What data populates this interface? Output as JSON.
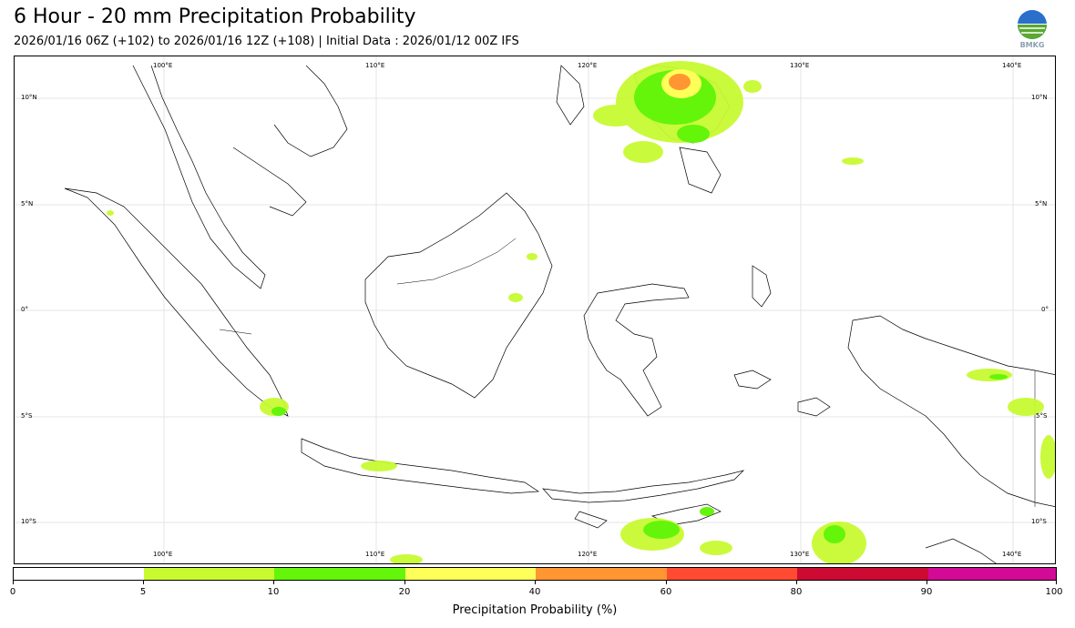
{
  "header": {
    "title": "6 Hour - 20 mm Precipitation Probability",
    "subtitle": "2026/01/16 06Z (+102) to 2026/01/16 12Z (+108) | Initial Data : 2026/01/12 00Z IFS"
  },
  "logo": {
    "text": "BMKG",
    "icon": "bmkg-logo"
  },
  "map": {
    "lon_labels_top": [
      "100°E",
      "110°E",
      "120°E",
      "130°E",
      "140°E"
    ],
    "lon_labels_bottom": [
      "100°E",
      "110°E",
      "120°E",
      "130°E",
      "140°E"
    ],
    "lat_labels_left": [
      "10°N",
      "5°N",
      "0°",
      "5°S",
      "10°S"
    ],
    "lat_labels_right": [
      "10°N",
      "5°N",
      "0°",
      "5°S",
      "10°S"
    ]
  },
  "colorbar": {
    "label": "Precipitation Probability (%)",
    "ticks": [
      "0",
      "5",
      "10",
      "20",
      "40",
      "60",
      "80",
      "90",
      "100"
    ],
    "colors": [
      "#ffffff",
      "#c8fa32",
      "#64f50a",
      "#ffff5a",
      "#ff9632",
      "#ff4b32",
      "#cd0a32",
      "#d20a96"
    ]
  }
}
